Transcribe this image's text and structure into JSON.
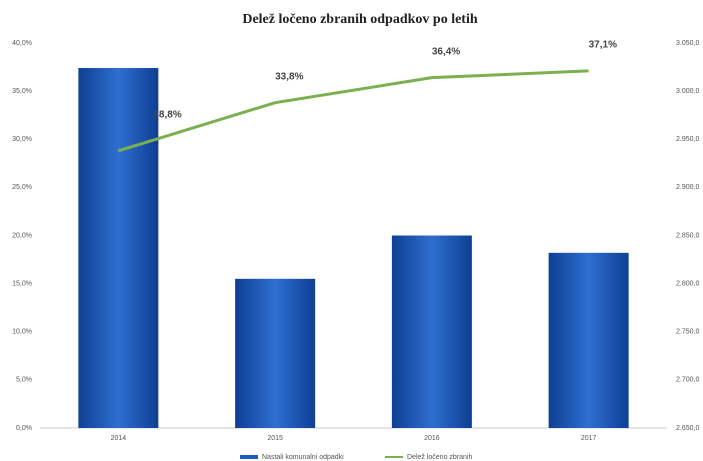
{
  "chart_data": {
    "type": "bar-line",
    "title": "Delež ločeno zbranih odpadkov po letih",
    "categories": [
      "2014",
      "2015",
      "2016",
      "2017"
    ],
    "series": [
      {
        "name": "Nastali komunalni odpadki",
        "type": "bar",
        "axis": "y2",
        "color": "#1a5bbf",
        "values": [
          3024,
          2805,
          2850,
          2832
        ]
      },
      {
        "name": "Delež ločeno zbranih",
        "type": "line",
        "color": "#7cb04f",
        "values": [
          28.8,
          33.8,
          36.4,
          37.1
        ],
        "value_labels": [
          "28,8%",
          "33,8%",
          "36,4%",
          "37,1%"
        ]
      }
    ],
    "ylim": [
      0,
      40
    ],
    "yticks": [
      {
        "value": 0,
        "label": "0,0%"
      },
      {
        "value": 5,
        "label": "5,0%"
      },
      {
        "value": 10,
        "label": "10,0%"
      },
      {
        "value": 15,
        "label": "15,0%"
      },
      {
        "value": 20,
        "label": "20,0%"
      },
      {
        "value": 25,
        "label": "25,0%"
      },
      {
        "value": 30,
        "label": "30,0%"
      },
      {
        "value": 35,
        "label": "35,0%"
      },
      {
        "value": 40,
        "label": "40,0%"
      }
    ],
    "y2lim": [
      2650,
      3050
    ],
    "y2ticks": [
      {
        "value": 2650,
        "label": "2.650,0"
      },
      {
        "value": 2700,
        "label": "2.700,0"
      },
      {
        "value": 2750,
        "label": "2.750,0"
      },
      {
        "value": 2800,
        "label": "2.800,0"
      },
      {
        "value": 2850,
        "label": "2.850,0"
      },
      {
        "value": 2900,
        "label": "2.900,0"
      },
      {
        "value": 2950,
        "label": "2.950,0"
      },
      {
        "value": 3000,
        "label": "3.000,0"
      },
      {
        "value": 3050,
        "label": "3.050,0"
      }
    ]
  }
}
